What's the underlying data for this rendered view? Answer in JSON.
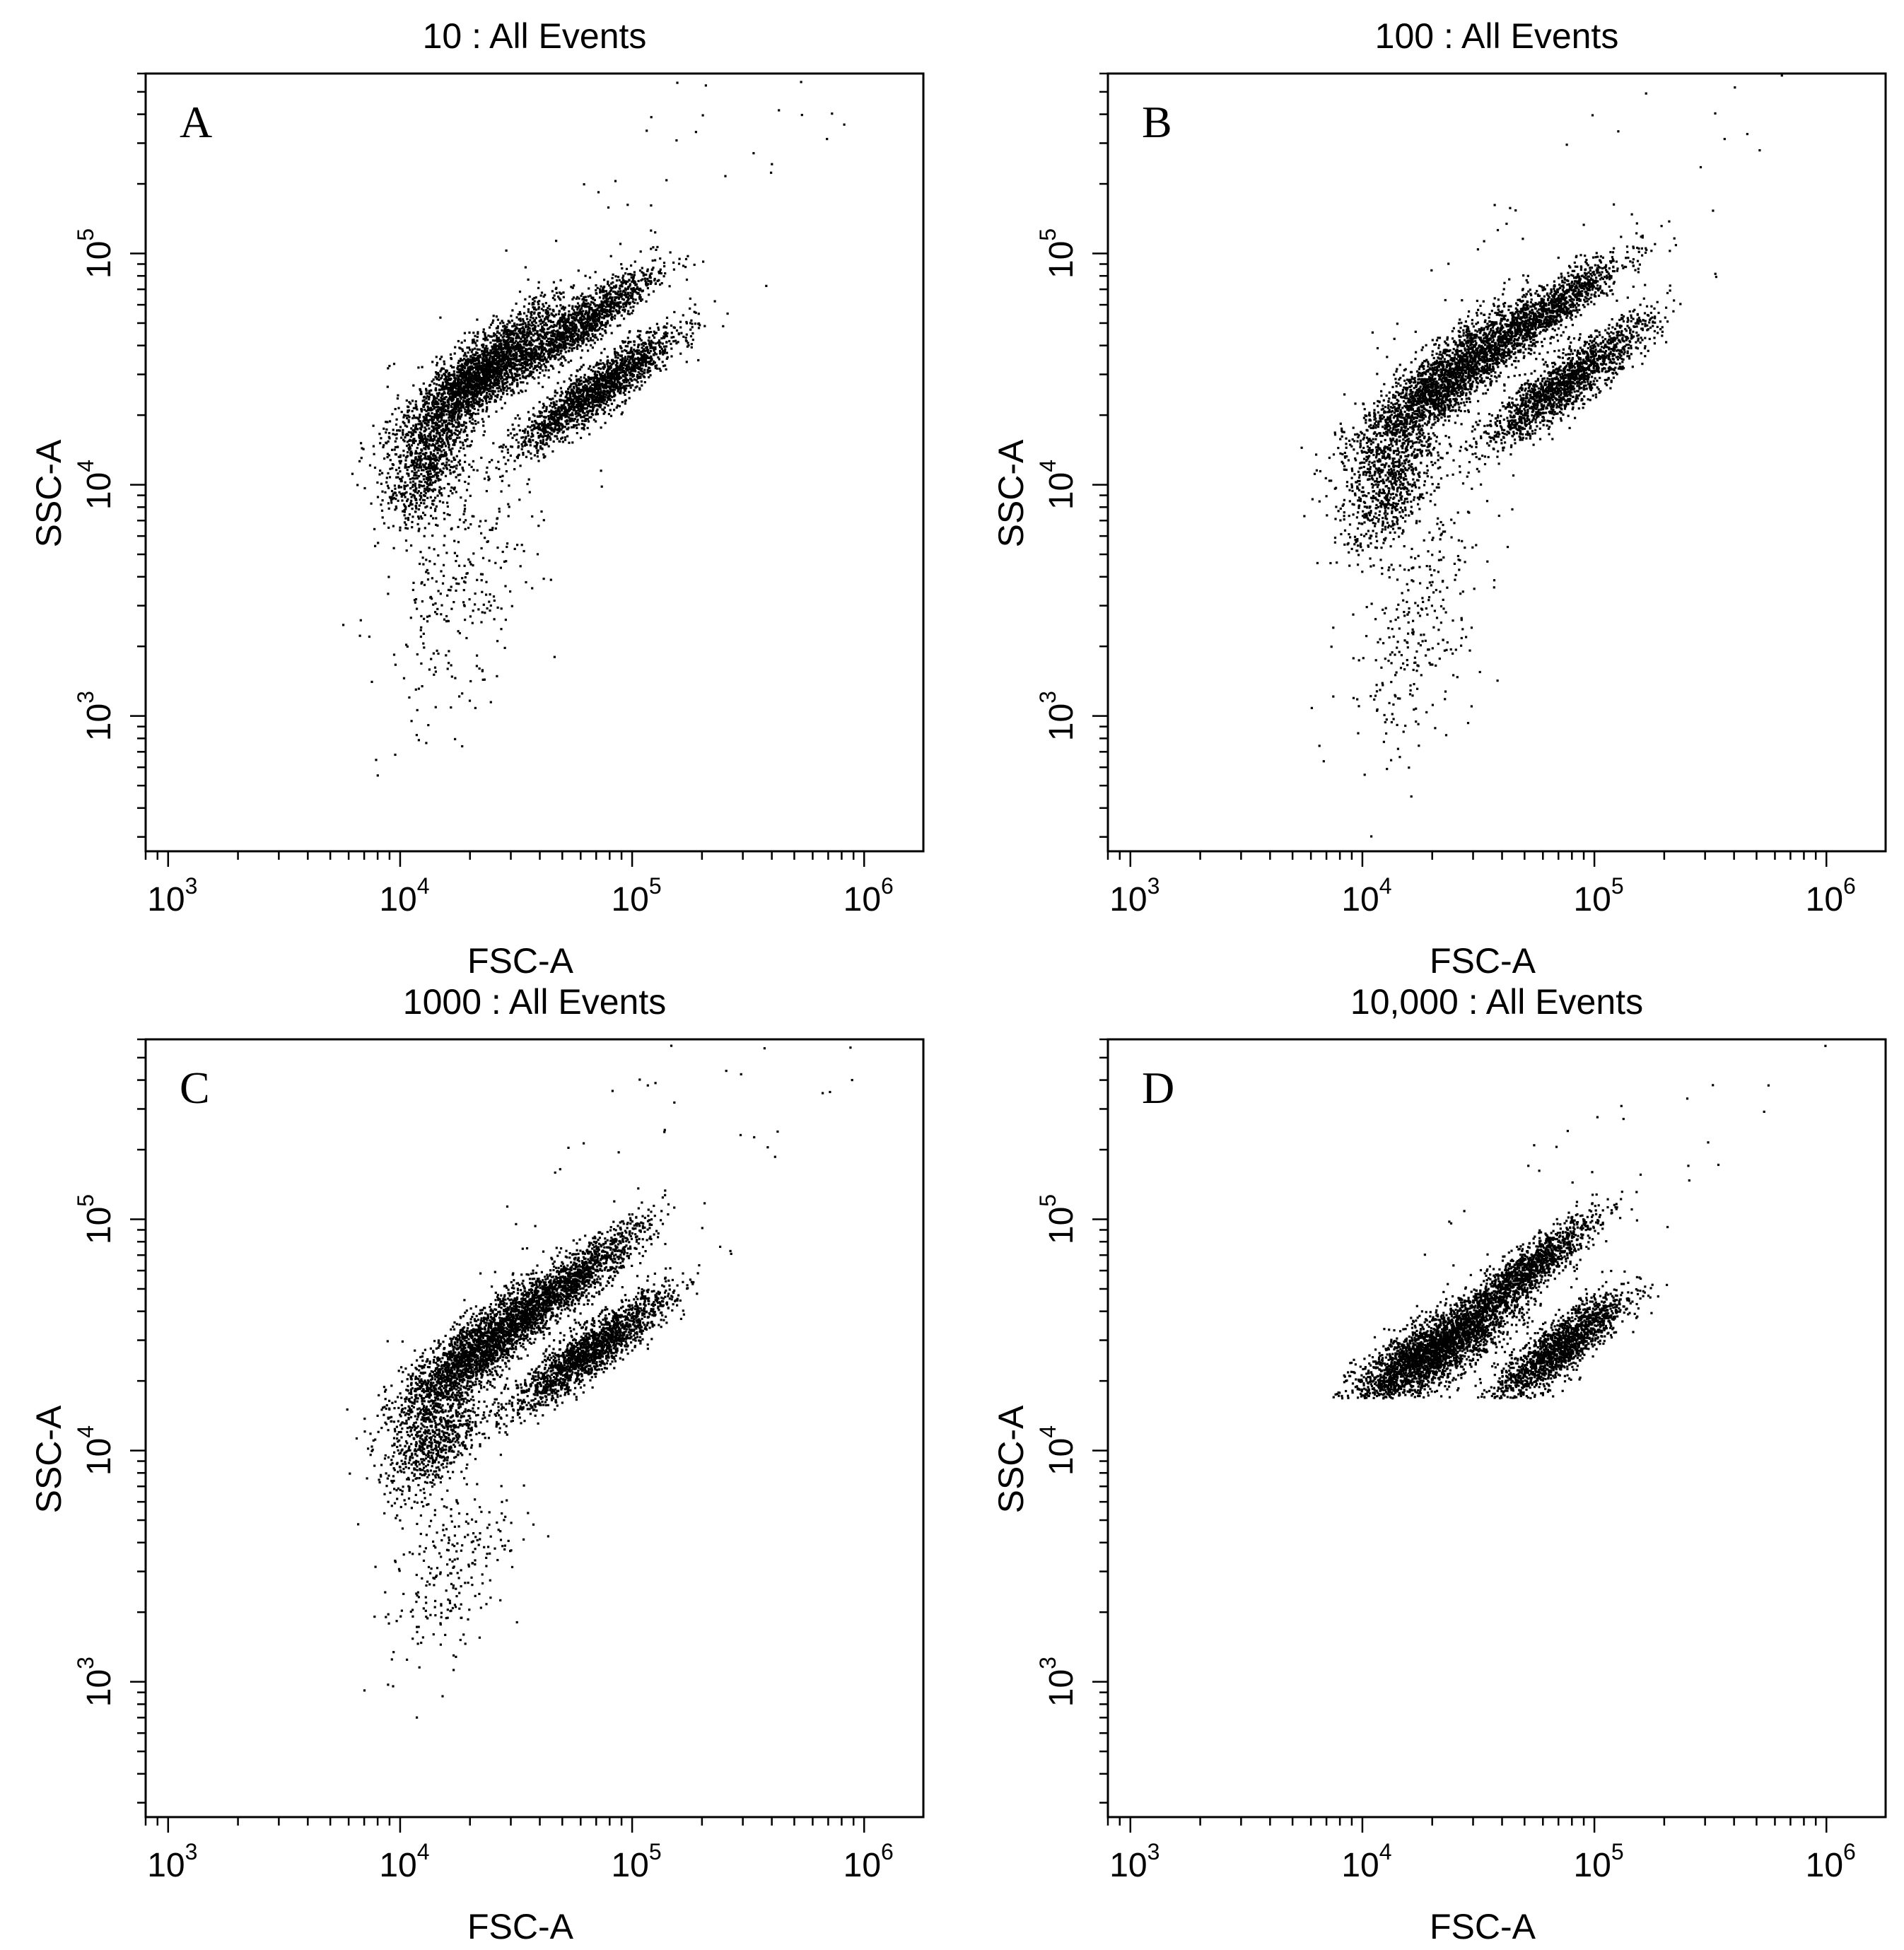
{
  "chart_data": [
    {
      "type": "scatter",
      "panel_label": "A",
      "title": "10 : All Events",
      "xlabel": "FSC-A",
      "ylabel": "SSC-A",
      "x_scale": "log",
      "y_scale": "log",
      "xlim": [
        800,
        1800000
      ],
      "ylim": [
        260,
        600000
      ],
      "x_ticks": [
        {
          "base": "10",
          "exp": "3"
        },
        {
          "base": "10",
          "exp": "4"
        },
        {
          "base": "10",
          "exp": "5"
        },
        {
          "base": "10",
          "exp": "6"
        }
      ],
      "y_ticks": [
        {
          "base": "10",
          "exp": "3"
        },
        {
          "base": "10",
          "exp": "4"
        },
        {
          "base": "10",
          "exp": "5"
        }
      ],
      "clusters": [
        {
          "x": 22000,
          "y": 30000,
          "spread_x": 0.17,
          "spread_y": 0.15,
          "corr": 0.85,
          "n": 2600
        },
        {
          "x": 60000,
          "y": 50000,
          "spread_x": 0.16,
          "spread_y": 0.12,
          "corr": 0.9,
          "n": 1300
        },
        {
          "x": 70000,
          "y": 26000,
          "spread_x": 0.17,
          "spread_y": 0.13,
          "corr": 0.9,
          "n": 1800
        },
        {
          "x": 13000,
          "y": 12000,
          "spread_x": 0.09,
          "spread_y": 0.12,
          "corr": 0.5,
          "n": 700
        },
        {
          "x": 18000,
          "y": 3500,
          "spread_x": 0.17,
          "spread_y": 0.3,
          "corr": 0.4,
          "n": 300
        }
      ],
      "noise": 90
    },
    {
      "type": "scatter",
      "panel_label": "B",
      "title": "100 : All Events",
      "xlabel": "FSC-A",
      "ylabel": "SSC-A",
      "x_scale": "log",
      "y_scale": "log",
      "xlim": [
        800,
        1800000
      ],
      "ylim": [
        260,
        600000
      ],
      "x_ticks": [
        {
          "base": "10",
          "exp": "3"
        },
        {
          "base": "10",
          "exp": "4"
        },
        {
          "base": "10",
          "exp": "5"
        },
        {
          "base": "10",
          "exp": "6"
        }
      ],
      "y_ticks": [
        {
          "base": "10",
          "exp": "3"
        },
        {
          "base": "10",
          "exp": "4"
        },
        {
          "base": "10",
          "exp": "5"
        }
      ],
      "clusters": [
        {
          "x": 22000,
          "y": 28000,
          "spread_x": 0.18,
          "spread_y": 0.16,
          "corr": 0.85,
          "n": 2300
        },
        {
          "x": 60000,
          "y": 55000,
          "spread_x": 0.17,
          "spread_y": 0.13,
          "corr": 0.9,
          "n": 1300
        },
        {
          "x": 75000,
          "y": 28000,
          "spread_x": 0.18,
          "spread_y": 0.14,
          "corr": 0.9,
          "n": 1700
        },
        {
          "x": 13000,
          "y": 10000,
          "spread_x": 0.1,
          "spread_y": 0.14,
          "corr": 0.5,
          "n": 700
        },
        {
          "x": 17000,
          "y": 2500,
          "spread_x": 0.15,
          "spread_y": 0.3,
          "corr": 0.5,
          "n": 300
        }
      ],
      "noise": 90
    },
    {
      "type": "scatter",
      "panel_label": "C",
      "title": "1000 : All Events",
      "xlabel": "FSC-A",
      "ylabel": "SSC-A",
      "x_scale": "log",
      "y_scale": "log",
      "xlim": [
        800,
        1800000
      ],
      "ylim": [
        260,
        600000
      ],
      "x_ticks": [
        {
          "base": "10",
          "exp": "3"
        },
        {
          "base": "10",
          "exp": "4"
        },
        {
          "base": "10",
          "exp": "5"
        },
        {
          "base": "10",
          "exp": "6"
        }
      ],
      "y_ticks": [
        {
          "base": "10",
          "exp": "3"
        },
        {
          "base": "10",
          "exp": "4"
        },
        {
          "base": "10",
          "exp": "5"
        }
      ],
      "clusters": [
        {
          "x": 22000,
          "y": 28000,
          "spread_x": 0.17,
          "spread_y": 0.15,
          "corr": 0.85,
          "n": 2500
        },
        {
          "x": 55000,
          "y": 55000,
          "spread_x": 0.16,
          "spread_y": 0.13,
          "corr": 0.9,
          "n": 1300
        },
        {
          "x": 65000,
          "y": 27000,
          "spread_x": 0.17,
          "spread_y": 0.13,
          "corr": 0.9,
          "n": 1800
        },
        {
          "x": 14000,
          "y": 11000,
          "spread_x": 0.1,
          "spread_y": 0.12,
          "corr": 0.5,
          "n": 700
        },
        {
          "x": 16000,
          "y": 3000,
          "spread_x": 0.13,
          "spread_y": 0.2,
          "corr": 0.5,
          "n": 250
        }
      ],
      "noise": 90
    },
    {
      "type": "scatter",
      "panel_label": "D",
      "title": "10,000 : All Events",
      "xlabel": "FSC-A",
      "ylabel": "SSC-A",
      "x_scale": "log",
      "y_scale": "log",
      "xlim": [
        800,
        1800000
      ],
      "ylim": [
        260,
        600000
      ],
      "x_ticks": [
        {
          "base": "10",
          "exp": "3"
        },
        {
          "base": "10",
          "exp": "4"
        },
        {
          "base": "10",
          "exp": "5"
        },
        {
          "base": "10",
          "exp": "6"
        }
      ],
      "y_ticks": [
        {
          "base": "10",
          "exp": "3"
        },
        {
          "base": "10",
          "exp": "4"
        },
        {
          "base": "10",
          "exp": "5"
        }
      ],
      "clusters": [
        {
          "x": 20000,
          "y": 27000,
          "spread_x": 0.17,
          "spread_y": 0.12,
          "corr": 0.8,
          "n": 2800
        },
        {
          "x": 50000,
          "y": 60000,
          "spread_x": 0.15,
          "spread_y": 0.12,
          "corr": 0.9,
          "n": 1300
        },
        {
          "x": 70000,
          "y": 28000,
          "spread_x": 0.14,
          "spread_y": 0.12,
          "corr": 0.85,
          "n": 1700
        }
      ],
      "floor_y": 17000,
      "noise": 70
    }
  ]
}
